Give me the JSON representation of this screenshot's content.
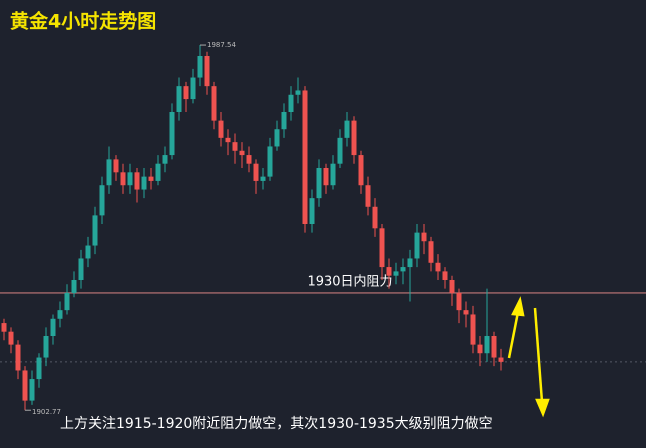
{
  "chart_data": {
    "type": "candlestick",
    "title": "黄金4小时走势图",
    "open": [
      1923,
      1921,
      1918,
      1912,
      1905,
      1910,
      1915,
      1920,
      1924,
      1926,
      1930,
      1933,
      1938,
      1941,
      1948,
      1955,
      1961,
      1958,
      1955,
      1958,
      1954,
      1957,
      1956,
      1960,
      1962,
      1972,
      1978,
      1975,
      1980,
      1985,
      1978,
      1970,
      1966,
      1965,
      1963,
      1962,
      1960,
      1956,
      1957,
      1964,
      1968,
      1972,
      1976,
      1977,
      1946,
      1952,
      1959,
      1955,
      1960,
      1966,
      1970,
      1962,
      1955,
      1950,
      1945,
      1936,
      1934,
      1935,
      1936,
      1938,
      1944,
      1942,
      1937,
      1935,
      1933,
      1930,
      1926,
      1925,
      1918,
      1916,
      1920,
      1915
    ],
    "high": [
      1924,
      1922,
      1919,
      1913,
      1912,
      1916,
      1922,
      1925,
      1928,
      1932,
      1935,
      1940,
      1943,
      1950,
      1957,
      1964,
      1962,
      1960,
      1960,
      1959,
      1959,
      1959,
      1962,
      1964,
      1974,
      1980,
      1979,
      1982,
      1987.54,
      1986,
      1979,
      1972,
      1968,
      1967,
      1965,
      1964,
      1961,
      1959,
      1966,
      1970,
      1974,
      1978,
      1980,
      1978,
      1954,
      1961,
      1960,
      1962,
      1968,
      1972,
      1971,
      1963,
      1957,
      1952,
      1946,
      1938,
      1937,
      1938,
      1940,
      1946,
      1946,
      1943,
      1939,
      1936,
      1934,
      1931,
      1928,
      1927,
      1920,
      1931,
      1921,
      1917
    ],
    "low": [
      1919,
      1916,
      1910,
      1902.77,
      1904,
      1908,
      1913,
      1918,
      1922,
      1925,
      1929,
      1931,
      1936,
      1939,
      1946,
      1953,
      1956,
      1953,
      1953,
      1951,
      1952,
      1954,
      1955,
      1958,
      1961,
      1970,
      1972,
      1974,
      1978,
      1976,
      1968,
      1964,
      1962,
      1960,
      1959,
      1958,
      1953,
      1954,
      1956,
      1963,
      1966,
      1970,
      1974,
      1944,
      1944,
      1950,
      1953,
      1954,
      1959,
      1964,
      1960,
      1953,
      1948,
      1943,
      1933,
      1931,
      1932,
      1932,
      1928,
      1936,
      1939,
      1935,
      1933,
      1931,
      1927,
      1923,
      1922,
      1916,
      1913,
      1914,
      1913,
      1912
    ],
    "close": [
      1921,
      1918,
      1912,
      1905,
      1910,
      1915,
      1920,
      1924,
      1926,
      1930,
      1933,
      1938,
      1941,
      1948,
      1955,
      1961,
      1958,
      1955,
      1958,
      1954,
      1957,
      1956,
      1960,
      1962,
      1972,
      1978,
      1975,
      1980,
      1985,
      1978,
      1970,
      1966,
      1965,
      1963,
      1962,
      1960,
      1956,
      1957,
      1964,
      1968,
      1972,
      1976,
      1977,
      1946,
      1952,
      1959,
      1955,
      1960,
      1966,
      1970,
      1962,
      1955,
      1950,
      1945,
      1936,
      1934,
      1935,
      1936,
      1938,
      1944,
      1942,
      1937,
      1935,
      1933,
      1930,
      1926,
      1925,
      1918,
      1916,
      1920,
      1915,
      1914
    ],
    "up_color": "#26a69a",
    "down_color": "#ef5350",
    "ylim": [
      1894,
      1998
    ],
    "high_label": "1987.54",
    "low_label": "1902.77",
    "resistance": {
      "value": 1930,
      "label": "1930日内阻力",
      "color": "#c47a7a"
    },
    "price_line": 1914,
    "annotation": "上方关注1915-1920附近阻力做空，其次1930-1935大级别阻力做空"
  }
}
